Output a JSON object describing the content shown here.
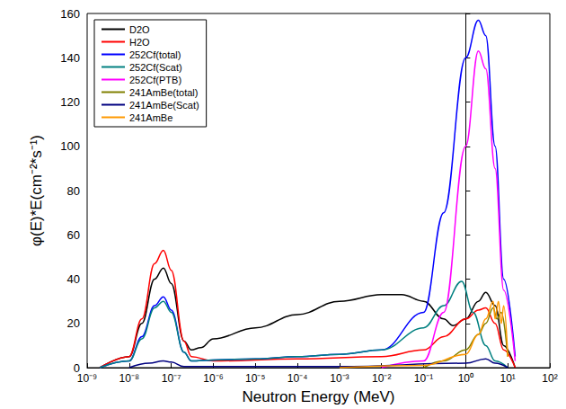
{
  "chart_data": {
    "type": "line",
    "x_label": "Neutron Energy (MeV)",
    "y_label": "φ(E)*E(cm⁻²*s⁻¹)",
    "log": "x",
    "grid": false,
    "legend": "upper left",
    "xlim": [
      1e-09,
      100
    ],
    "xticks": [
      {
        "value": 1e-09,
        "label": "10⁻⁹"
      },
      {
        "value": 1e-08,
        "label": "10⁻⁸"
      },
      {
        "value": 1e-07,
        "label": "10⁻⁷"
      },
      {
        "value": 1e-06,
        "label": "10⁻⁶"
      },
      {
        "value": 1e-05,
        "label": "10⁻⁵"
      },
      {
        "value": 0.0001,
        "label": "10⁻⁴"
      },
      {
        "value": 0.001,
        "label": "10⁻³"
      },
      {
        "value": 0.01,
        "label": "10⁻²"
      },
      {
        "value": 0.1,
        "label": "10⁻¹"
      },
      {
        "value": 1,
        "label": "10⁰"
      },
      {
        "value": 10,
        "label": "10¹"
      },
      {
        "value": 100,
        "label": "10²"
      }
    ],
    "ylim": [
      0,
      160
    ],
    "yticks": [
      0,
      20,
      40,
      60,
      80,
      100,
      120,
      140,
      160
    ],
    "series": [
      {
        "name": "D2O",
        "color": "#000000",
        "x": [
          2e-09,
          1e-08,
          2e-08,
          4e-08,
          6.5e-08,
          1e-07,
          2e-07,
          3e-07,
          5e-07,
          1e-06,
          1e-05,
          0.0001,
          0.001,
          0.01,
          0.03,
          0.1,
          0.3,
          0.5,
          1,
          2,
          3,
          5,
          8,
          15
        ],
        "values": [
          0,
          5,
          20,
          40,
          45,
          38,
          12,
          8,
          9,
          13,
          18,
          24,
          30,
          33,
          33,
          30,
          22,
          19,
          22,
          30,
          34,
          28,
          10,
          0
        ]
      },
      {
        "name": "H2O",
        "color": "#ff0000",
        "x": [
          2e-09,
          1e-08,
          2e-08,
          4e-08,
          6.5e-08,
          1e-07,
          2e-07,
          3e-07,
          1e-06,
          0.0001,
          0.01,
          0.1,
          0.3,
          1,
          2,
          3,
          5,
          8,
          15
        ],
        "values": [
          0,
          5,
          22,
          47,
          53,
          44,
          12,
          5,
          3,
          4,
          5,
          8,
          14,
          22,
          26,
          27,
          20,
          8,
          0
        ]
      },
      {
        "name": "252Cf(total)",
        "color": "#0000ff",
        "x": [
          2e-09,
          1e-08,
          2e-08,
          4e-08,
          6.5e-08,
          1e-07,
          2e-07,
          3e-07,
          1e-06,
          1e-05,
          0.0001,
          0.001,
          0.01,
          0.1,
          0.3,
          1,
          2,
          3,
          5,
          8,
          15
        ],
        "values": [
          0,
          3,
          14,
          28,
          32,
          26,
          7,
          3,
          3.5,
          4,
          5,
          6,
          8,
          25,
          70,
          140,
          157,
          150,
          100,
          40,
          5
        ]
      },
      {
        "name": "252Cf(Scat)",
        "color": "#008080",
        "x": [
          2e-09,
          1e-08,
          2e-08,
          4e-08,
          6.5e-08,
          1e-07,
          2e-07,
          3e-07,
          1e-06,
          1e-05,
          0.0001,
          0.001,
          0.01,
          0.1,
          0.3,
          0.8,
          1.5,
          3,
          5,
          10
        ],
        "values": [
          0,
          3,
          13,
          27,
          30,
          25,
          7,
          3,
          3.5,
          4,
          5,
          6,
          8,
          18,
          28,
          39,
          25,
          10,
          3,
          0
        ]
      },
      {
        "name": "252Cf(PTB)",
        "color": "#ff00ff",
        "x": [
          0.01,
          0.1,
          0.3,
          1,
          2,
          3,
          5,
          8,
          15
        ],
        "values": [
          0,
          3,
          25,
          100,
          143,
          135,
          90,
          35,
          3
        ]
      },
      {
        "name": "241AmBe(total)",
        "color": "#808000",
        "x": [
          0.1,
          0.3,
          1,
          2,
          3,
          4.5,
          5.5,
          7,
          10
        ],
        "values": [
          0,
          3,
          8,
          15,
          20,
          27,
          22,
          25,
          5
        ]
      },
      {
        "name": "241AmBe(Scat)",
        "color": "#000080",
        "x": [
          1e-08,
          3e-08,
          6.5e-08,
          1e-07,
          2e-07,
          1e-06,
          0.001,
          1,
          3,
          5,
          10
        ],
        "values": [
          0,
          2,
          3,
          2.5,
          0.5,
          0.5,
          0.5,
          2,
          4,
          2,
          0
        ]
      },
      {
        "name": "241AmBe",
        "color": "#ff9900",
        "x": [
          0.001,
          0.1,
          1,
          2,
          3,
          4.5,
          5,
          6,
          7,
          8,
          10
        ],
        "values": [
          0,
          1,
          6,
          15,
          22,
          30,
          22,
          30,
          20,
          28,
          5
        ]
      }
    ]
  }
}
